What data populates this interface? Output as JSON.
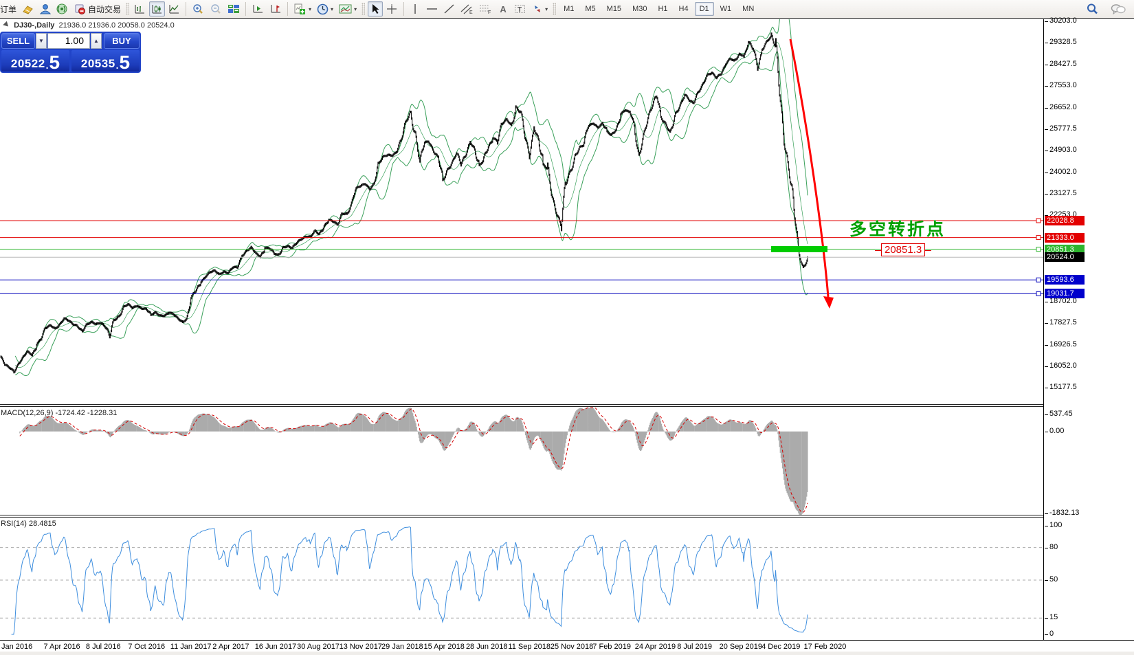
{
  "toolbar": {
    "order_label": "订单",
    "autotrade_label": "自动交易",
    "timeframes": [
      "M1",
      "M5",
      "M15",
      "M30",
      "H1",
      "H4",
      "D1",
      "W1",
      "MN"
    ],
    "active_timeframe": "D1"
  },
  "trade_panel": {
    "sell_label": "SELL",
    "buy_label": "BUY",
    "volume": "1.00",
    "sell_price_main": "20522",
    "sell_price_big": "5",
    "buy_price_main": "20535",
    "buy_price_big": "5"
  },
  "chart": {
    "title": "DJ30-,Daily",
    "ohlc": "21936.0 21936.0 20058.0 20524.0",
    "macd_label": "MACD(12,26,9) -1724.42 -1228.31",
    "rsi_label": "RSI(14) 28.4815"
  },
  "annotations": {
    "turning_point": "多空转折点",
    "price_callout": "20851.3"
  },
  "chart_data": {
    "type": "candlestick",
    "symbol": "DJ30-",
    "timeframe": "Daily",
    "title": "DJ30-,Daily 21936.0 21936.0 20058.0 20524.0",
    "price_axis_ticks": [
      "30203.0",
      "29328.5",
      "28427.5",
      "27553.0",
      "26652.0",
      "25777.5",
      "24903.0",
      "24002.0",
      "23127.5",
      "22253.0",
      "18702.0",
      "17827.5",
      "16926.5",
      "16052.0",
      "15177.5"
    ],
    "price_range": [
      15177.5,
      30203.0
    ],
    "levels": [
      {
        "price": 22028.8,
        "label": "22028.8",
        "line_color": "#e30000",
        "label_bg": "#e30000",
        "marker": true
      },
      {
        "price": 21333.0,
        "label": "21333.0",
        "line_color": "#e30000",
        "label_bg": "#e30000",
        "marker": true
      },
      {
        "price": 20851.3,
        "label": "20851.3",
        "line_color": "#2db52d",
        "label_bg": "#2db52d",
        "marker": true
      },
      {
        "price": 20524.0,
        "label": "20524.0",
        "line_color": "#b8b8b8",
        "label_bg": "#000000",
        "marker": false
      },
      {
        "price": 19593.6,
        "label": "19593.6",
        "line_color": "#0000bb",
        "label_bg": "#0000cc",
        "marker": true
      },
      {
        "price": 19031.7,
        "label": "19031.7",
        "line_color": "#0000bb",
        "label_bg": "#0000cc",
        "marker": true
      }
    ],
    "dates": [
      "Jan 2016",
      "7 Apr 2016",
      "8 Jul 2016",
      "7 Oct 2016",
      "11 Jan 2017",
      "2 Apr 2017",
      "16 Jun 2017",
      "30 Aug 2017",
      "13 Nov 2017",
      "29 Jan 2018",
      "15 Apr 2018",
      "28 Jun 2018",
      "11 Sep 2018",
      "25 Nov 2018",
      "7 Feb 2019",
      "24 Apr 2019",
      "8 Jul 2019",
      "20 Sep 2019",
      "4 Dec 2019",
      "17 Feb 2020"
    ],
    "weekly_closes": [
      16450,
      16100,
      15990,
      15880,
      16180,
      16390,
      16630,
      16520,
      17000,
      17210,
      17600,
      17720,
      17620,
      17790,
      18005,
      17900,
      17775,
      17740,
      17500,
      17740,
      17850,
      17805,
      17865,
      17675,
      17140,
      17950,
      18145,
      18500,
      18570,
      18430,
      18550,
      18455,
      18400,
      18120,
      18260,
      18160,
      18140,
      18240,
      18160,
      18020,
      17890,
      18020,
      18850,
      19170,
      19550,
      19750,
      19900,
      19950,
      19830,
      19960,
      19885,
      20090,
      20100,
      20620,
      20820,
      20900,
      20660,
      20550,
      20940,
      20915,
      20660,
      20580,
      20950,
      21005,
      20900,
      21080,
      21270,
      21400,
      21380,
      21580,
      21410,
      21830,
      22090,
      21990,
      21790,
      22300,
      22350,
      22770,
      23330,
      23430,
      23560,
      23360,
      23560,
      24290,
      24650,
      24750,
      24720,
      24850,
      25300,
      26150,
      26615,
      25520,
      24190,
      25220,
      25310,
      24950,
      24540,
      23530,
      24100,
      24460,
      24830,
      24260,
      24650,
      25300,
      25020,
      24270,
      24460,
      25050,
      25450,
      25310,
      25960,
      26150,
      25965,
      26740,
      26460,
      25340,
      24690,
      25990,
      25410,
      24290,
      24100,
      23060,
      22450,
      21790,
      23430,
      24000,
      24740,
      25060,
      25110,
      25890,
      26030,
      25880,
      26020,
      25650,
      25500,
      25850,
      26420,
      26550,
      26430,
      25940,
      24815,
      25540,
      26090,
      26720,
      27330,
      26290,
      25890,
      25480,
      26400,
      26820,
      27220,
      26940,
      26820,
      27350,
      27680,
      28000,
      28050,
      27880,
      28130,
      28460,
      28650,
      28540,
      28870,
      28820,
      29350,
      28990,
      28260,
      29100,
      29400,
      29550,
      28990,
      27100,
      25410,
      24000,
      22200,
      20700,
      20150,
      20524
    ],
    "bands": {
      "name": "Bollinger",
      "period": 20,
      "deviation": 2,
      "color": "#3aa05a"
    },
    "macd": {
      "label": "MACD(12,26,9)",
      "main_value": -1724.42,
      "signal_value": -1228.31,
      "axis_max": "537.45",
      "axis_zero": "0.00",
      "axis_min": "-1832.13",
      "histogram_color": "#ababab",
      "signal_color": "#d40000"
    },
    "rsi": {
      "label": "RSI(14)",
      "value": 28.4815,
      "levels": [
        80,
        50,
        15
      ],
      "axis_ticks": [
        "100",
        "80",
        "50",
        "15",
        "0"
      ],
      "line_color": "#3e8ede"
    }
  }
}
